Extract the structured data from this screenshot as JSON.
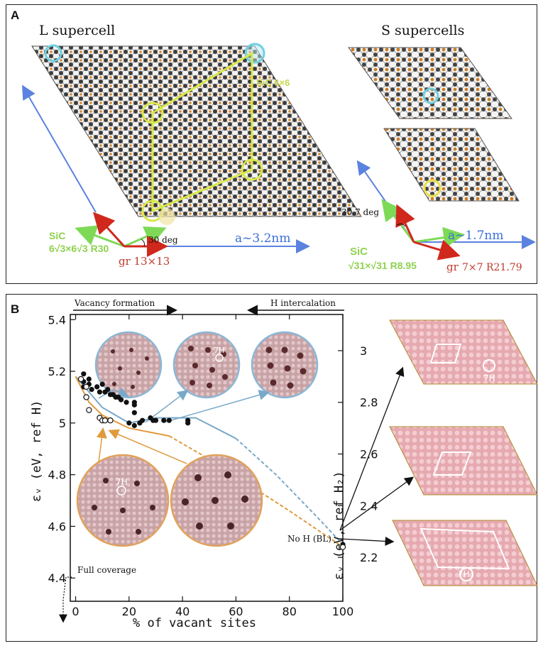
{
  "panel_a": {
    "label": "A",
    "left_title": "L supercell",
    "right_title": "S supercells",
    "sic_6x6": "SiC 6×6",
    "sic_left_line1": "SiC",
    "sic_left_line2": "6√3×6√3 R30",
    "gr_left": "gr 13×13",
    "angle_left": "30 deg",
    "a_left": "a~3.2nm",
    "angle_right": "30.7 deg",
    "sic_right_line1": "SiC",
    "sic_right_line2": "√31×√31 R8.95",
    "gr_right_prefix": "gr",
    "gr_right_suffix": "7×7 R21.79",
    "a_right": "a~1.7nm"
  },
  "panel_b": {
    "label": "B",
    "vacancy_formation": "Vacancy formation",
    "h_intercalation": "H intercalation",
    "label_7h": "7H",
    "full_coverage": "Full coverage",
    "no_h_bl": "No H (BL)",
    "ylabel_left": "εᵥ (eV, ref H)",
    "ylabel_right": "εᵥ (eV, ref H₂)",
    "xlabel": "% of vacant sites"
  },
  "chart_data": {
    "type": "scatter",
    "xlabel": "% of vacant sites",
    "ylabel": "εᵥ (eV, ref H)",
    "ylabel_right": "εᵥ (eV, ref H₂)",
    "xlim": [
      -2,
      100
    ],
    "ylim": [
      4.31,
      5.42
    ],
    "ylim_right": [
      2.03,
      3.14
    ],
    "x_ticks": [
      0,
      20,
      40,
      60,
      80,
      100
    ],
    "y_ticks": [
      4.4,
      4.6,
      4.8,
      5,
      5.2,
      5.4
    ],
    "y_ticks_right": [
      2.2,
      2.4,
      2.6,
      2.8,
      3
    ],
    "series": [
      {
        "marker": "filled",
        "color": "#111111",
        "points": [
          [
            3,
            5.19
          ],
          [
            3,
            5.16
          ],
          [
            3,
            5.14
          ],
          [
            5,
            5.17
          ],
          [
            5,
            5.15
          ],
          [
            6,
            5.13
          ],
          [
            8,
            5.14
          ],
          [
            9,
            5.12
          ],
          [
            10,
            5.15
          ],
          [
            11,
            5.12
          ],
          [
            12,
            5.13
          ],
          [
            13,
            5.11
          ],
          [
            14,
            5.11
          ],
          [
            15,
            5.1
          ],
          [
            16,
            5.1
          ],
          [
            17,
            5.09
          ],
          [
            19,
            5.08
          ],
          [
            22,
            5.08
          ],
          [
            22,
            5.07
          ],
          [
            22,
            5.04
          ],
          [
            20,
            5.0
          ],
          [
            22,
            4.99
          ],
          [
            24,
            5.0
          ],
          [
            24,
            5.0
          ],
          [
            25,
            5.01
          ],
          [
            28,
            5.02
          ],
          [
            29,
            5.01
          ],
          [
            30,
            5.01
          ],
          [
            33,
            5.01
          ],
          [
            35,
            5.01
          ],
          [
            42,
            5.01
          ],
          [
            42,
            5.0
          ],
          [
            100,
            4.53
          ]
        ]
      },
      {
        "marker": "open",
        "color": "#111111",
        "points": [
          [
            2,
            5.17
          ],
          [
            4,
            5.14
          ],
          [
            4,
            5.1
          ],
          [
            5,
            5.05
          ],
          [
            9,
            5.02
          ],
          [
            10,
            5.01
          ],
          [
            11,
            5.01
          ],
          [
            13,
            5.01
          ],
          [
            100,
            4.52
          ]
        ]
      }
    ],
    "curves": [
      {
        "style": "solid-then-dashed",
        "color": "#79a9c8",
        "points": [
          [
            0,
            5.18
          ],
          [
            10,
            5.06
          ],
          [
            20,
            5.0
          ],
          [
            30,
            5.02
          ],
          [
            45,
            5.02
          ],
          [
            60,
            4.94
          ],
          [
            75,
            4.8
          ],
          [
            90,
            4.64
          ],
          [
            100,
            4.53
          ]
        ]
      },
      {
        "style": "solid-then-dashed",
        "color": "#e09a3e",
        "points": [
          [
            0,
            5.18
          ],
          [
            5,
            5.08
          ],
          [
            10,
            5.03
          ],
          [
            20,
            4.98
          ],
          [
            35,
            4.95
          ],
          [
            50,
            4.86
          ],
          [
            65,
            4.76
          ],
          [
            80,
            4.66
          ],
          [
            100,
            4.52
          ]
        ]
      }
    ],
    "grid": false
  }
}
